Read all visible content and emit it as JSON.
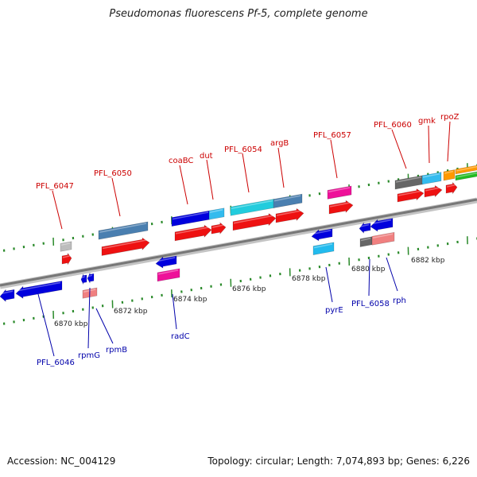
{
  "title": "Pseudomonas fluorescens Pf-5, complete genome",
  "footer": {
    "accession": "Accession: NC_004129",
    "summary": "Topology: circular; Length: 7,074,893 bp; Genes: 6,226"
  },
  "colors": {
    "backbone": "#8a8a8a",
    "tick": "#2a8a2a",
    "forward_label": "#cc0000",
    "reverse_label": "#0000aa"
  },
  "kbp_labels": [
    "6870 kbp",
    "6872 kbp",
    "6874 kbp",
    "6876 kbp",
    "6878 kbp",
    "6880 kbp",
    "6882 kbp"
  ],
  "forward_gene_labels": [
    "PFL_6047",
    "PFL_6050",
    "coaBC",
    "dut",
    "PFL_6054",
    "argB",
    "PFL_6057",
    "PFL_6060",
    "gmk",
    "rpoZ"
  ],
  "reverse_gene_labels": [
    "PFL_6046",
    "rpmG",
    "rpmB",
    "radC",
    "pyrE",
    "PFL_6058",
    "rph"
  ]
}
